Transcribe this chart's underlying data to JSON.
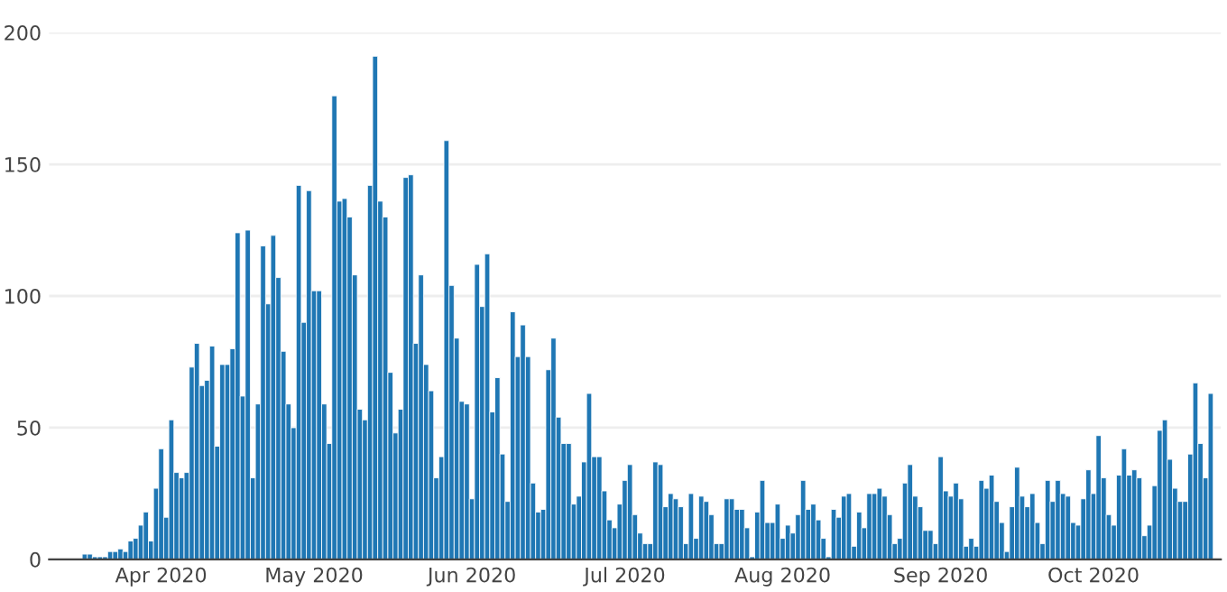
{
  "chart_data": {
    "type": "bar",
    "color": "#1f77b4",
    "x": [
      "2020-03-17",
      "2020-03-18",
      "2020-03-19",
      "2020-03-20",
      "2020-03-21",
      "2020-03-22",
      "2020-03-23",
      "2020-03-24",
      "2020-03-25",
      "2020-03-26",
      "2020-03-27",
      "2020-03-28",
      "2020-03-29",
      "2020-03-30",
      "2020-03-31",
      "2020-04-01",
      "2020-04-02",
      "2020-04-03",
      "2020-04-04",
      "2020-04-05",
      "2020-04-06",
      "2020-04-07",
      "2020-04-08",
      "2020-04-09",
      "2020-04-10",
      "2020-04-11",
      "2020-04-12",
      "2020-04-13",
      "2020-04-14",
      "2020-04-15",
      "2020-04-16",
      "2020-04-17",
      "2020-04-18",
      "2020-04-19",
      "2020-04-20",
      "2020-04-21",
      "2020-04-22",
      "2020-04-23",
      "2020-04-24",
      "2020-04-25",
      "2020-04-26",
      "2020-04-27",
      "2020-04-28",
      "2020-04-29",
      "2020-04-30",
      "2020-05-01",
      "2020-05-02",
      "2020-05-03",
      "2020-05-04",
      "2020-05-05",
      "2020-05-06",
      "2020-05-07",
      "2020-05-08",
      "2020-05-09",
      "2020-05-10",
      "2020-05-11",
      "2020-05-12",
      "2020-05-13",
      "2020-05-14",
      "2020-05-15",
      "2020-05-16",
      "2020-05-17",
      "2020-05-18",
      "2020-05-19",
      "2020-05-20",
      "2020-05-21",
      "2020-05-22",
      "2020-05-23",
      "2020-05-24",
      "2020-05-25",
      "2020-05-26",
      "2020-05-27",
      "2020-05-28",
      "2020-05-29",
      "2020-05-30",
      "2020-05-31",
      "2020-06-01",
      "2020-06-02",
      "2020-06-03",
      "2020-06-04",
      "2020-06-05",
      "2020-06-06",
      "2020-06-07",
      "2020-06-08",
      "2020-06-09",
      "2020-06-10",
      "2020-06-11",
      "2020-06-12",
      "2020-06-13",
      "2020-06-14",
      "2020-06-15",
      "2020-06-16",
      "2020-06-17",
      "2020-06-18",
      "2020-06-19",
      "2020-06-20",
      "2020-06-21",
      "2020-06-22",
      "2020-06-23",
      "2020-06-24",
      "2020-06-25",
      "2020-06-26",
      "2020-06-27",
      "2020-06-28",
      "2020-06-29",
      "2020-06-30",
      "2020-07-01",
      "2020-07-02",
      "2020-07-03",
      "2020-07-04",
      "2020-07-05",
      "2020-07-06",
      "2020-07-07",
      "2020-07-08",
      "2020-07-09",
      "2020-07-10",
      "2020-07-11",
      "2020-07-12",
      "2020-07-13",
      "2020-07-14",
      "2020-07-15",
      "2020-07-16",
      "2020-07-17",
      "2020-07-18",
      "2020-07-19",
      "2020-07-20",
      "2020-07-21",
      "2020-07-22",
      "2020-07-23",
      "2020-07-24",
      "2020-07-25",
      "2020-07-26",
      "2020-07-27",
      "2020-07-28",
      "2020-07-29",
      "2020-07-30",
      "2020-07-31",
      "2020-08-01",
      "2020-08-02",
      "2020-08-03",
      "2020-08-04",
      "2020-08-05",
      "2020-08-06",
      "2020-08-07",
      "2020-08-08",
      "2020-08-09",
      "2020-08-10",
      "2020-08-11",
      "2020-08-12",
      "2020-08-13",
      "2020-08-14",
      "2020-08-15",
      "2020-08-16",
      "2020-08-17",
      "2020-08-18",
      "2020-08-19",
      "2020-08-20",
      "2020-08-21",
      "2020-08-22",
      "2020-08-23",
      "2020-08-24",
      "2020-08-25",
      "2020-08-26",
      "2020-08-27",
      "2020-08-28",
      "2020-08-29",
      "2020-08-30",
      "2020-08-31",
      "2020-09-01",
      "2020-09-02",
      "2020-09-03",
      "2020-09-04",
      "2020-09-05",
      "2020-09-06",
      "2020-09-07",
      "2020-09-08",
      "2020-09-09",
      "2020-09-10",
      "2020-09-11",
      "2020-09-12",
      "2020-09-13",
      "2020-09-14",
      "2020-09-15",
      "2020-09-16",
      "2020-09-17",
      "2020-09-18",
      "2020-09-19",
      "2020-09-20",
      "2020-09-21",
      "2020-09-22",
      "2020-09-23",
      "2020-09-24",
      "2020-09-25",
      "2020-09-26",
      "2020-09-27",
      "2020-09-28",
      "2020-09-29",
      "2020-09-30",
      "2020-10-01",
      "2020-10-02",
      "2020-10-03",
      "2020-10-04",
      "2020-10-05",
      "2020-10-06",
      "2020-10-07",
      "2020-10-08",
      "2020-10-09",
      "2020-10-10",
      "2020-10-11",
      "2020-10-12",
      "2020-10-13",
      "2020-10-14",
      "2020-10-15",
      "2020-10-16",
      "2020-10-17",
      "2020-10-18",
      "2020-10-19",
      "2020-10-20",
      "2020-10-21",
      "2020-10-22",
      "2020-10-23",
      "2020-10-24"
    ],
    "values": [
      2,
      2,
      1,
      1,
      1,
      3,
      3,
      4,
      3,
      7,
      8,
      13,
      18,
      7,
      27,
      42,
      16,
      53,
      33,
      31,
      33,
      73,
      82,
      66,
      68,
      81,
      43,
      74,
      74,
      80,
      124,
      62,
      125,
      31,
      59,
      119,
      97,
      123,
      107,
      79,
      59,
      50,
      142,
      90,
      140,
      102,
      102,
      59,
      44,
      176,
      136,
      137,
      130,
      108,
      57,
      53,
      142,
      191,
      136,
      130,
      71,
      48,
      57,
      145,
      146,
      82,
      108,
      74,
      64,
      31,
      39,
      159,
      104,
      84,
      60,
      59,
      23,
      112,
      96,
      116,
      56,
      69,
      40,
      22,
      94,
      77,
      89,
      77,
      29,
      18,
      19,
      72,
      84,
      54,
      44,
      44,
      21,
      24,
      37,
      63,
      39,
      39,
      26,
      15,
      12,
      21,
      30,
      36,
      17,
      10,
      6,
      6,
      37,
      36,
      20,
      25,
      23,
      20,
      6,
      25,
      8,
      24,
      22,
      17,
      6,
      6,
      23,
      23,
      19,
      19,
      12,
      1,
      18,
      30,
      14,
      14,
      21,
      8,
      13,
      10,
      17,
      30,
      19,
      21,
      15,
      8,
      1,
      19,
      16,
      24,
      25,
      5,
      18,
      12,
      25,
      25,
      27,
      24,
      17,
      6,
      8,
      29,
      36,
      24,
      20,
      11,
      11,
      6,
      39,
      26,
      24,
      29,
      23,
      5,
      8,
      5,
      30,
      27,
      32,
      22,
      14,
      3,
      20,
      35,
      24,
      20,
      25,
      14,
      6,
      30,
      22,
      30,
      25,
      24,
      14,
      13,
      23,
      34,
      25,
      47,
      31,
      17,
      13,
      32,
      42,
      32,
      34,
      31,
      9,
      13,
      28,
      49,
      53,
      38,
      27,
      22,
      22,
      40,
      67,
      44,
      31,
      63
    ],
    "xlim": [
      "2020-03-10",
      "2020-10-26"
    ],
    "xticks": [
      {
        "value": "2020-04-01",
        "label": "Apr 2020"
      },
      {
        "value": "2020-05-01",
        "label": "May 2020"
      },
      {
        "value": "2020-06-01",
        "label": "Jun 2020"
      },
      {
        "value": "2020-07-01",
        "label": "Jul 2020"
      },
      {
        "value": "2020-08-01",
        "label": "Aug 2020"
      },
      {
        "value": "2020-09-01",
        "label": "Sep 2020"
      },
      {
        "value": "2020-10-01",
        "label": "Oct 2020"
      }
    ],
    "ylim": [
      0,
      200
    ],
    "yticks": [
      0,
      50,
      100,
      150,
      200
    ],
    "grid": "y",
    "legend": false
  }
}
